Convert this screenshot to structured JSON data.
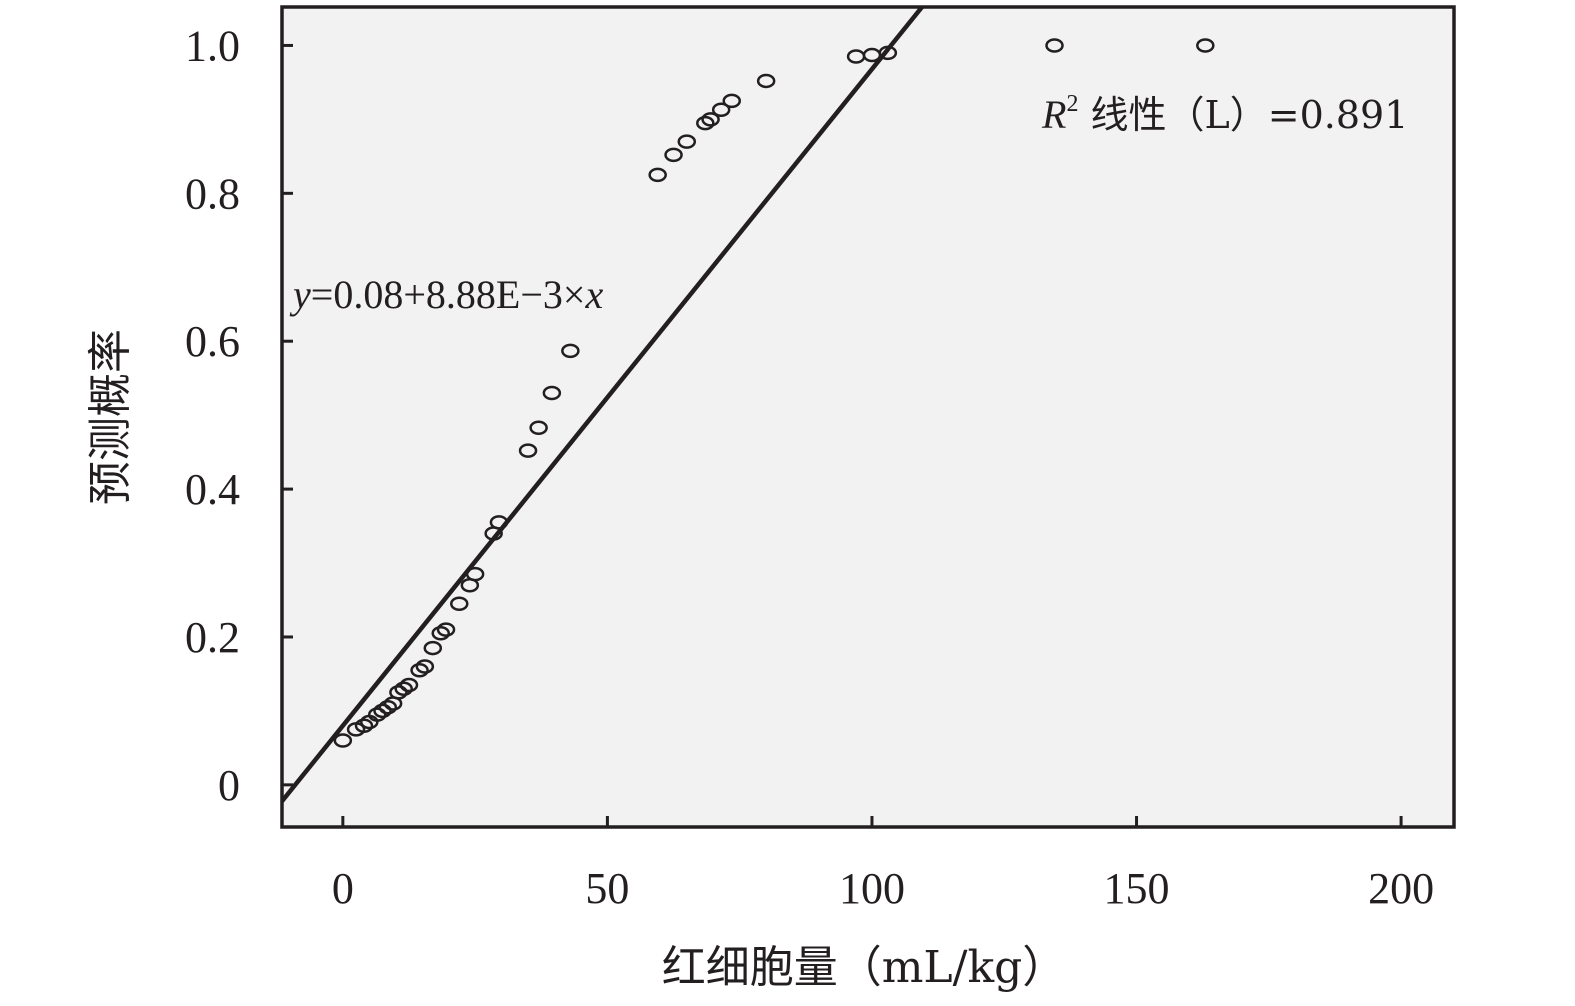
{
  "chart_data": {
    "type": "scatter",
    "xlabel": "红细胞量（mL/kg）",
    "ylabel": "预测概率",
    "xlim": [
      -11.5,
      210
    ],
    "ylim": [
      -0.057,
      1.052
    ],
    "x_ticks": [
      0,
      50,
      100,
      150,
      200
    ],
    "x_tick_labels": [
      "0",
      "50",
      "100",
      "150",
      "200"
    ],
    "y_ticks": [
      0,
      0.2,
      0.4,
      0.6,
      0.8,
      1.0
    ],
    "y_tick_labels": [
      "0",
      "0.2",
      "0.4",
      "0.6",
      "0.8",
      "1.0"
    ],
    "grid": false,
    "plot_background": "#f2f2f2",
    "ink_color": "#231f20",
    "fit_line": {
      "intercept": 0.08,
      "slope": 0.00888
    },
    "annotations": {
      "equation": {
        "y": "y",
        "rest": "=0.08+8.88E−3×",
        "x": "x"
      },
      "r2": {
        "r": "R",
        "sup": "2",
        "rest": " 线性（L）=0.891"
      }
    },
    "points": [
      {
        "x": 0.0,
        "y": 0.06
      },
      {
        "x": 2.5,
        "y": 0.075
      },
      {
        "x": 4.0,
        "y": 0.08
      },
      {
        "x": 5.0,
        "y": 0.085
      },
      {
        "x": 6.5,
        "y": 0.095
      },
      {
        "x": 7.5,
        "y": 0.1
      },
      {
        "x": 8.5,
        "y": 0.105
      },
      {
        "x": 9.5,
        "y": 0.11
      },
      {
        "x": 10.5,
        "y": 0.125
      },
      {
        "x": 11.5,
        "y": 0.13
      },
      {
        "x": 12.5,
        "y": 0.135
      },
      {
        "x": 14.5,
        "y": 0.155
      },
      {
        "x": 15.5,
        "y": 0.16
      },
      {
        "x": 17.0,
        "y": 0.185
      },
      {
        "x": 18.5,
        "y": 0.205
      },
      {
        "x": 19.5,
        "y": 0.21
      },
      {
        "x": 22.0,
        "y": 0.245
      },
      {
        "x": 24.0,
        "y": 0.27
      },
      {
        "x": 25.0,
        "y": 0.285
      },
      {
        "x": 28.5,
        "y": 0.34
      },
      {
        "x": 29.5,
        "y": 0.355
      },
      {
        "x": 35.0,
        "y": 0.452
      },
      {
        "x": 37.0,
        "y": 0.483
      },
      {
        "x": 39.5,
        "y": 0.53
      },
      {
        "x": 43.0,
        "y": 0.587
      },
      {
        "x": 59.5,
        "y": 0.825
      },
      {
        "x": 62.5,
        "y": 0.852
      },
      {
        "x": 65.0,
        "y": 0.87
      },
      {
        "x": 68.5,
        "y": 0.895
      },
      {
        "x": 69.5,
        "y": 0.9
      },
      {
        "x": 71.5,
        "y": 0.913
      },
      {
        "x": 73.5,
        "y": 0.925
      },
      {
        "x": 80.0,
        "y": 0.952
      },
      {
        "x": 97.0,
        "y": 0.985
      },
      {
        "x": 100.0,
        "y": 0.987
      },
      {
        "x": 103.0,
        "y": 0.99
      },
      {
        "x": 134.5,
        "y": 1.0
      },
      {
        "x": 163.0,
        "y": 1.0
      }
    ]
  }
}
